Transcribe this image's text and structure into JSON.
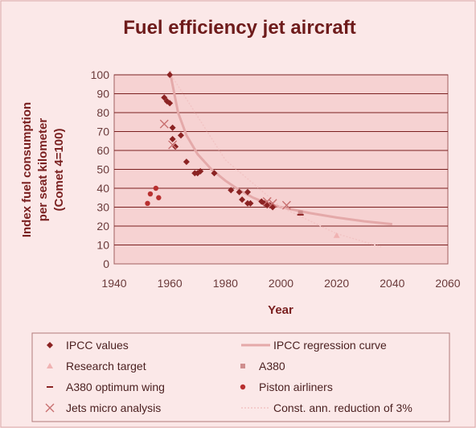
{
  "chart_data": {
    "type": "scatter",
    "title": "Fuel efficiency jet aircraft",
    "xlabel": "Year",
    "ylabel": [
      "Index fuel consumption",
      "per seat kilometer",
      "(Comet 4=100)"
    ],
    "xlim": [
      1940,
      2060
    ],
    "ylim": [
      0,
      100
    ],
    "xticks": [
      1940,
      1960,
      1980,
      2000,
      2020,
      2040,
      2060
    ],
    "yticks": [
      0,
      10,
      20,
      30,
      40,
      50,
      60,
      70,
      80,
      90,
      100
    ],
    "grid": "horizontal",
    "legend_position": "bottom",
    "colors": {
      "background": "#fbe8e8",
      "plot_area": "#f6d2d2",
      "grid": "#7a1f1f",
      "ipcc": "#8b2323",
      "regression": "#e4a9a9",
      "research": "#f0b2b2",
      "a380": "#cf8e8e",
      "piston": "#b83030",
      "jets_micro": "#c87070",
      "reduction": "#f2c4c4"
    },
    "series": [
      {
        "name": "IPCC values",
        "marker": "diamond",
        "points": [
          [
            1960,
            100
          ],
          [
            1958,
            88
          ],
          [
            1959,
            86
          ],
          [
            1960,
            85
          ],
          [
            1961,
            72
          ],
          [
            1961,
            66
          ],
          [
            1962,
            62
          ],
          [
            1964,
            68
          ],
          [
            1966,
            54
          ],
          [
            1969,
            48
          ],
          [
            1970,
            48
          ],
          [
            1971,
            49
          ],
          [
            1976,
            48
          ],
          [
            1982,
            39
          ],
          [
            1985,
            38
          ],
          [
            1986,
            34
          ],
          [
            1988,
            38
          ],
          [
            1988,
            32
          ],
          [
            1989,
            32
          ],
          [
            1993,
            33
          ],
          [
            1994,
            32
          ],
          [
            1995,
            31
          ],
          [
            1996,
            31
          ],
          [
            1997,
            30
          ]
        ]
      },
      {
        "name": "IPCC regression curve",
        "marker": "line",
        "points": [
          [
            1960,
            102
          ],
          [
            1963,
            80
          ],
          [
            1966,
            68
          ],
          [
            1970,
            58
          ],
          [
            1975,
            50
          ],
          [
            1980,
            44
          ],
          [
            1985,
            39
          ],
          [
            1990,
            35
          ],
          [
            1995,
            32
          ],
          [
            2000,
            30
          ],
          [
            2010,
            27
          ],
          [
            2020,
            24.5
          ],
          [
            2030,
            22.5
          ],
          [
            2040,
            21
          ]
        ]
      },
      {
        "name": "Research target",
        "marker": "triangle",
        "points": [
          [
            2020,
            15
          ]
        ]
      },
      {
        "name": "A380",
        "marker": "square",
        "points": [
          [
            2007,
            27
          ]
        ]
      },
      {
        "name": "A380 optimum wing",
        "marker": "dash",
        "points": [
          [
            2007,
            26
          ]
        ]
      },
      {
        "name": "Piston airliners",
        "marker": "circle",
        "points": [
          [
            1952,
            32
          ],
          [
            1953,
            37
          ],
          [
            1955,
            40
          ],
          [
            1956,
            35
          ]
        ]
      },
      {
        "name": "Jets micro analysis",
        "marker": "x",
        "points": [
          [
            1958,
            74
          ],
          [
            1961,
            63
          ],
          [
            1995,
            33
          ],
          [
            1997,
            32
          ],
          [
            2002,
            31
          ]
        ]
      },
      {
        "name": "Const. ann. reduction of 3%",
        "marker": "dotted-line",
        "points": [
          [
            1960,
            101
          ],
          [
            1980,
            55
          ],
          [
            2000,
            30
          ],
          [
            2020,
            16
          ],
          [
            2036,
            9
          ]
        ]
      }
    ]
  }
}
